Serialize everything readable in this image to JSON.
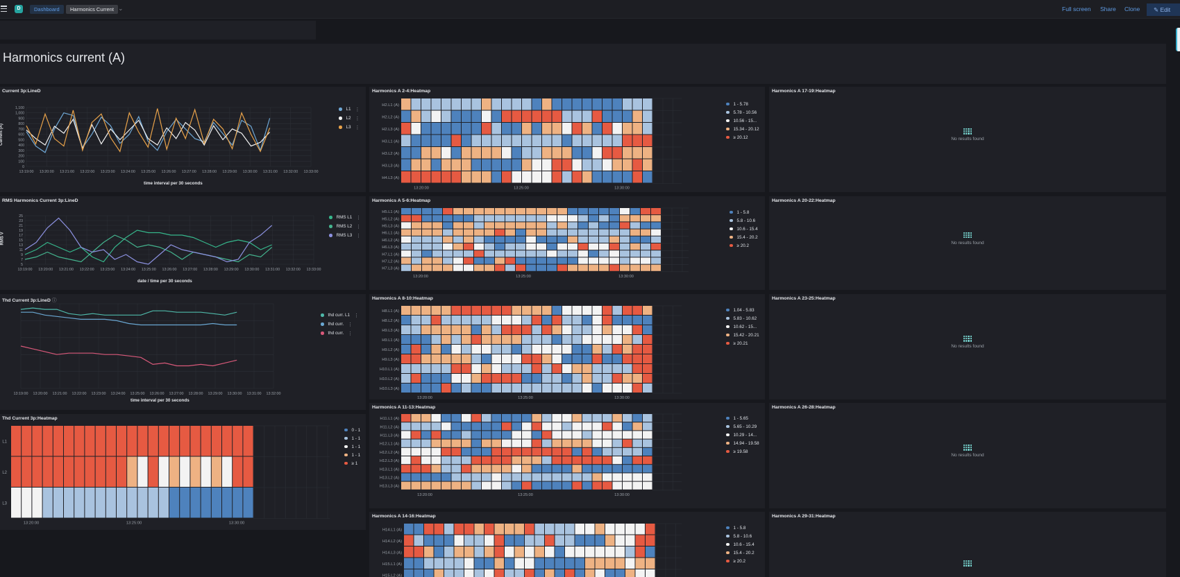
{
  "topbar": {
    "app_icon": "D",
    "breadcrumbs": [
      "Dashboard",
      "Harmonics Current"
    ],
    "actions": [
      "Full screen",
      "Share",
      "Clone"
    ],
    "edit_label": "Edit"
  },
  "dashboard_title": "Harmonics current (A)",
  "no_results": "No results found",
  "colors": {
    "l1": "#6fa8d6",
    "l2": "#f2f2f2",
    "l3": "#e8a24a",
    "rms1": "#36b78c",
    "rms2": "#44b48e",
    "rms3": "#8c91e0",
    "thd1": "#4fb8a9",
    "thd2": "#6aa7d2",
    "thd3": "#d9597a",
    "heat": [
      "#4e82bd",
      "#a9c3df",
      "#f3f3f3",
      "#eeb283",
      "#e65a42"
    ]
  },
  "panels": {
    "current": {
      "title": "Current 3p:LineD",
      "ylabel": "Current (A)",
      "xlabel": "time interval per 30 seconds",
      "yticks": [
        "1,100",
        "1,000",
        "900",
        "800",
        "700",
        "600",
        "500",
        "400",
        "300",
        "200",
        "100",
        "0"
      ],
      "xticks": [
        "13:19:00",
        "13:20:00",
        "13:21:00",
        "13:22:00",
        "13:23:00",
        "13:24:00",
        "13:25:00",
        "13:26:00",
        "13:27:00",
        "13:28:00",
        "13:29:00",
        "13:30:00",
        "13:31:00",
        "13:32:00",
        "13:33:00"
      ],
      "legend": [
        "L1",
        "L2",
        "L3"
      ]
    },
    "rms": {
      "title": "RMS Harmonics Current 3p:LineD",
      "ylabel": "RMS V",
      "xlabel": "date / time per 30 seconds",
      "yticks": [
        "25",
        "23",
        "21",
        "19",
        "17",
        "15",
        "13",
        "11",
        "9",
        "7",
        "5"
      ],
      "xticks": [
        "13:19:00",
        "13:20:00",
        "13:21:00",
        "13:22:00",
        "13:23:00",
        "13:24:00",
        "13:25:00",
        "13:26:00",
        "13:27:00",
        "13:28:00",
        "13:29:00",
        "13:30:00",
        "13:31:00",
        "13:32:00",
        "13:33:00"
      ],
      "legend": [
        "RMS L1",
        "RMS L2",
        "RMS L3"
      ]
    },
    "thd": {
      "title": "Thd Current 3p:LineD",
      "ylabel": "Harmonics %",
      "xlabel": "time interval per 30 seconds",
      "xticks": [
        "13:19:00",
        "13:20:00",
        "13:21:00",
        "13:22:00",
        "13:23:00",
        "13:24:00",
        "13:25:00",
        "13:26:00",
        "13:27:00",
        "13:28:00",
        "13:29:00",
        "13:30:00",
        "13:31:00",
        "13:32:00"
      ],
      "legend": [
        "thd curr. L1",
        "thd curr.",
        "thd curr."
      ]
    },
    "thd_heat": {
      "title": "Thd Current 3p:Heatmap",
      "rows": [
        "L1",
        "L2",
        "L3"
      ],
      "xticks": [
        "13:20:00",
        "13:25:00",
        "13:30:00"
      ],
      "legend": [
        "0 - 1",
        "1 - 1",
        "1 - 1",
        "1 - 1",
        "≥ 1"
      ]
    },
    "heatmaps": [
      {
        "title": "Harmonics A 2-4:Heatmap",
        "rows": [
          "H2.L1 (A)",
          "H2.L2 (A)",
          "H2.L3 (A)",
          "H3.L1 (A)",
          "H3.L2 (A)",
          "H3.L3 (A)",
          "H4.L3 (A)"
        ],
        "legend": [
          "1 - 5.78",
          "5.78 - 10.56",
          "10.56 - 15...",
          "15.34 - 20.12",
          "≥ 20.12"
        ]
      },
      {
        "title": "Harmonics A 5-6:Heatmap",
        "rows": [
          "H5.L1 (A)",
          "H5.L2 (A)",
          "H5.L3 (A)",
          "H6.L1 (A)",
          "H6.L2 (A)",
          "H6.L3 (A)",
          "H7.L1 (A)",
          "H7.L2 (A)",
          "H7.L3 (A)"
        ],
        "legend": [
          "1 - 5.8",
          "5.8 - 10.6",
          "10.6 - 15.4",
          "15.4 - 20.2",
          "≥ 20.2"
        ]
      },
      {
        "title": "Harmonics A 8-10:Heatmap",
        "rows": [
          "H8.L1 (A)",
          "H8.L2 (A)",
          "H9.L3 (A)",
          "H9.L1 (A)",
          "H9.L2 (A)",
          "H9.L3 (A)",
          "H10.L1 (A)",
          "H10.L2 (A)",
          "H10.L3 (A)"
        ],
        "legend": [
          "1.04 - 5.83",
          "5.83 - 10.62",
          "10.62 - 15...",
          "15.42 - 20.21",
          "≥ 20.21"
        ]
      },
      {
        "title": "Harmonics A 11-13:Heatmap",
        "rows": [
          "H11.L1 (A)",
          "H11.L2 (A)",
          "H11.L3 (A)",
          "H12.L1 (A)",
          "H12.L2 (A)",
          "H12.L3 (A)",
          "H13.L1 (A)",
          "H13.L2 (A)",
          "H13.L3 (A)"
        ],
        "legend": [
          "1 - 5.65",
          "5.65 - 10.29",
          "10.29 - 14...",
          "14.94 - 19.58",
          "≥ 19.58"
        ]
      },
      {
        "title": "Harmonics A 14-16:Heatmap",
        "rows": [
          "H14.L1 (A)",
          "H14.L2 (A)",
          "H14.L3 (A)",
          "H15.L1 (A)",
          "H15.L2 (A)"
        ],
        "legend": [
          "1 - 5.8",
          "5.8 - 10.6",
          "10.6 - 15.4",
          "15.4 - 20.2",
          "≥ 20.2"
        ]
      }
    ],
    "heat_xticks": [
      "13:20:00",
      "13:25:00",
      "13:30:00"
    ],
    "empty": [
      "Harmonics A 17-19:Heatmap",
      "Harmonics A 20-22:Heatmap",
      "Harmonics A 23-25:Heatmap",
      "Harmonics A 26-28:Heatmap",
      "Harmonics A 29-31:Heatmap"
    ]
  },
  "chart_data": [
    {
      "type": "line",
      "title": "Current 3p:LineD",
      "ylabel": "Current (A)",
      "xlabel": "time interval per 30 seconds",
      "ylim": [
        0,
        1100
      ],
      "series": [
        {
          "name": "L1",
          "values": [
            650,
            380,
            260,
            700,
            1000,
            950,
            350,
            600,
            920,
            760,
            430,
            600,
            930,
            470,
            300,
            650,
            880,
            700,
            520,
            460,
            820,
            610,
            400,
            860,
            750,
            300,
            900
          ]
        },
        {
          "name": "L2",
          "values": [
            680,
            520,
            400,
            750,
            620,
            880,
            330,
            780,
            420,
            700,
            500,
            680,
            860,
            520,
            400,
            720,
            520,
            820,
            680,
            400,
            760,
            500,
            700,
            620,
            380,
            450,
            640
          ]
        },
        {
          "name": "L3",
          "values": [
            760,
            420,
            980,
            520,
            380,
            1050,
            300,
            820,
            980,
            540,
            280,
            1000,
            640,
            360,
            1080,
            320,
            900,
            520,
            1060,
            430,
            880,
            700,
            330,
            1000,
            600,
            280,
            720
          ]
        }
      ]
    },
    {
      "type": "line",
      "title": "RMS Harmonics Current 3p:LineD",
      "ylabel": "RMS V",
      "xlabel": "date / time per 30 seconds",
      "ylim": [
        5,
        25
      ],
      "series": [
        {
          "name": "RMS L1",
          "values": [
            9,
            11,
            14,
            12,
            10,
            12,
            8,
            6,
            12,
            16,
            19,
            18,
            18,
            17,
            17,
            16,
            14,
            12,
            14,
            15,
            14,
            11,
            13
          ]
        },
        {
          "name": "RMS L2",
          "values": [
            7,
            8,
            10,
            8,
            7,
            6,
            10,
            14,
            17,
            15,
            12,
            13,
            12,
            10,
            7,
            10,
            9,
            8,
            7,
            6,
            9,
            8,
            12
          ]
        },
        {
          "name": "RMS L3",
          "values": [
            11,
            14,
            20,
            24,
            19,
            12,
            10,
            11,
            7,
            9,
            6,
            5,
            9,
            13,
            11,
            10,
            9,
            8,
            6,
            7,
            14,
            17,
            21
          ]
        }
      ]
    },
    {
      "type": "line",
      "title": "Thd Current 3p:LineD",
      "ylabel": "Harmonics %",
      "series": [
        {
          "values": [
            96,
            97,
            96,
            96,
            93,
            92,
            93,
            92,
            92,
            92,
            92,
            95,
            95,
            94,
            94,
            94,
            93,
            92,
            94
          ]
        },
        {
          "values": [
            94,
            94,
            92,
            91,
            90,
            89,
            89,
            89,
            88,
            86,
            85,
            85,
            85,
            85,
            85,
            85,
            86,
            85,
            85
          ]
        },
        {
          "values": [
            70,
            68,
            66,
            64,
            65,
            65,
            65,
            64,
            64,
            63,
            62,
            57,
            58,
            56,
            56,
            57,
            56,
            58,
            60
          ]
        }
      ]
    }
  ]
}
